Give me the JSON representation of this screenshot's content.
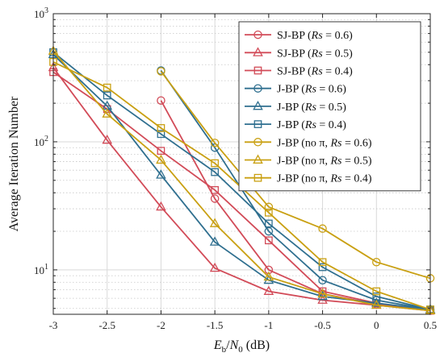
{
  "chart_data": {
    "type": "line",
    "title": "",
    "xlabel": "E_b/N_0 (dB)",
    "ylabel": "Average Iteration Number",
    "x": [
      -3,
      -2.5,
      -2,
      -1.5,
      -1,
      -0.5,
      0,
      0.5
    ],
    "x_tick_labels": [
      "-3",
      "-2.5",
      "-2",
      "-1.5",
      "-1",
      "-0.5",
      "0",
      "0.5"
    ],
    "xlim": [
      -3,
      0.5
    ],
    "ylim": [
      4.5,
      1000
    ],
    "yscale": "log",
    "y_tick_labels": [
      {
        "base": "10",
        "exp": "1",
        "value": 10
      },
      {
        "base": "10",
        "exp": "2",
        "value": 100
      },
      {
        "base": "10",
        "exp": "3",
        "value": 1000
      }
    ],
    "grid": true,
    "legend_position": "top-right",
    "series": [
      {
        "name": "SJ-BP (Rs = 0.6)",
        "label_parts": [
          "SJ-BP (",
          "Rs",
          " = 0.6)"
        ],
        "color": "#d24b58",
        "marker": "circle",
        "points": [
          [
            -2,
            210
          ],
          [
            -1.5,
            36
          ],
          [
            -1,
            10
          ],
          [
            -0.5,
            6.5
          ],
          [
            0,
            5.4
          ],
          [
            0.5,
            4.8
          ]
        ]
      },
      {
        "name": "SJ-BP (Rs = 0.5)",
        "label_parts": [
          "SJ-BP (",
          "Rs",
          " = 0.5)"
        ],
        "color": "#d24b58",
        "marker": "triangle",
        "points": [
          [
            -3,
            380
          ],
          [
            -2.5,
            103
          ],
          [
            -2,
            31
          ],
          [
            -1.5,
            10.3
          ],
          [
            -1,
            6.8
          ],
          [
            -0.5,
            5.8
          ],
          [
            0,
            5.3
          ],
          [
            0.5,
            4.8
          ]
        ]
      },
      {
        "name": "SJ-BP (Rs = 0.4)",
        "label_parts": [
          "SJ-BP (",
          "Rs",
          " = 0.4)"
        ],
        "color": "#d24b58",
        "marker": "square",
        "points": [
          [
            -3,
            350
          ],
          [
            -2.5,
            180
          ],
          [
            -2,
            85
          ],
          [
            -1.5,
            42
          ],
          [
            -1,
            17
          ],
          [
            -0.5,
            6.8
          ],
          [
            0,
            5.5
          ],
          [
            0.5,
            4.8
          ]
        ]
      },
      {
        "name": "J-BP (Rs = 0.6)",
        "label_parts": [
          "J-BP (",
          "Rs",
          " = 0.6)"
        ],
        "color": "#2f6f8f",
        "marker": "circle",
        "points": [
          [
            -2,
            360
          ],
          [
            -1.5,
            90
          ],
          [
            -1,
            20
          ],
          [
            -0.5,
            8.3
          ],
          [
            0,
            5.8
          ],
          [
            0.5,
            4.9
          ]
        ]
      },
      {
        "name": "J-BP (Rs = 0.5)",
        "label_parts": [
          "J-BP (",
          "Rs",
          " = 0.5)"
        ],
        "color": "#2f6f8f",
        "marker": "triangle",
        "points": [
          [
            -3,
            480
          ],
          [
            -2.5,
            190
          ],
          [
            -2,
            55
          ],
          [
            -1.5,
            16.5
          ],
          [
            -1,
            8.3
          ],
          [
            -0.5,
            6.2
          ],
          [
            0,
            5.5
          ],
          [
            0.5,
            4.9
          ]
        ]
      },
      {
        "name": "J-BP (Rs = 0.4)",
        "label_parts": [
          "J-BP (",
          "Rs",
          " = 0.4)"
        ],
        "color": "#2f6f8f",
        "marker": "square",
        "points": [
          [
            -3,
            500
          ],
          [
            -2.5,
            230
          ],
          [
            -2,
            115
          ],
          [
            -1.5,
            58
          ],
          [
            -1,
            23
          ],
          [
            -0.5,
            10.5
          ],
          [
            0,
            6.2
          ],
          [
            0.5,
            4.9
          ]
        ]
      },
      {
        "name": "J-BP (no π, Rs = 0.6)",
        "label_parts": [
          "J-BP (no π, ",
          "Rs",
          " = 0.6)"
        ],
        "color": "#c9a012",
        "marker": "circle",
        "points": [
          [
            -2,
            355
          ],
          [
            -1.5,
            98
          ],
          [
            -1,
            31
          ],
          [
            -0.5,
            21
          ],
          [
            0,
            11.5
          ],
          [
            0.5,
            8.6
          ]
        ]
      },
      {
        "name": "J-BP (no π, Rs = 0.5)",
        "label_parts": [
          "J-BP (no π, ",
          "Rs",
          " = 0.5)"
        ],
        "color": "#c9a012",
        "marker": "triangle",
        "points": [
          [
            -3,
            510
          ],
          [
            -2.5,
            165
          ],
          [
            -2,
            72
          ],
          [
            -1.5,
            23
          ],
          [
            -1,
            8.8
          ],
          [
            -0.5,
            6.5
          ],
          [
            0,
            5.3
          ],
          [
            0.5,
            4.8
          ]
        ]
      },
      {
        "name": "J-BP (no π, Rs = 0.4)",
        "label_parts": [
          "J-BP (no π, ",
          "Rs",
          " = 0.4)"
        ],
        "color": "#c9a012",
        "marker": "square",
        "points": [
          [
            -3,
            420
          ],
          [
            -2.5,
            265
          ],
          [
            -2,
            128
          ],
          [
            -1.5,
            68
          ],
          [
            -1,
            28
          ],
          [
            -0.5,
            11.5
          ],
          [
            0,
            6.8
          ],
          [
            0.5,
            4.9
          ]
        ]
      }
    ]
  }
}
